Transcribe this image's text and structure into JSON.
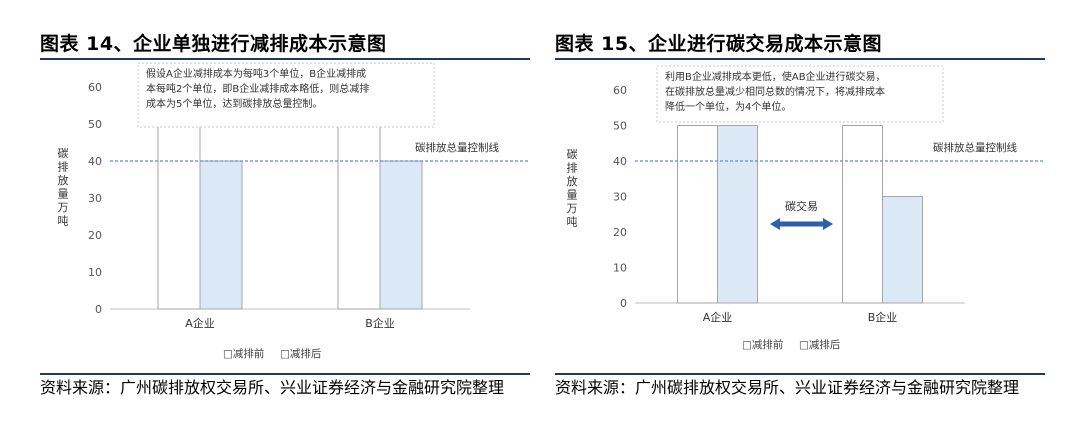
{
  "left": {
    "title": "图表 14、企业单独进行减排成本示意图",
    "source": "资料来源：广州碳排放权交易所、兴业证券经济与金融研究院整理",
    "chart_data": {
      "type": "bar",
      "categories": [
        "A企业",
        "B企业"
      ],
      "series": [
        {
          "name": "减排前",
          "values": [
            50,
            50
          ],
          "color": "#ffffff"
        },
        {
          "name": "减排后",
          "values": [
            40,
            40
          ],
          "color": "#dbe8f5"
        }
      ],
      "ylim": [
        0,
        60
      ],
      "yticks": [
        "0",
        "10",
        "20",
        "30",
        "40",
        "50",
        "60"
      ],
      "ylabel_chars": [
        "碳",
        "排",
        "放",
        "量",
        "万",
        "吨"
      ],
      "reference_line": {
        "value": 40,
        "label": "碳排放总量控制线"
      },
      "note_lines": [
        "假设A企业减排成本为每吨3个单位，B企业减排成",
        "本每吨2个单位，即B企业减排成本略低，则总减排",
        "成本为5个单位，达到碳排放总量控制。"
      ],
      "legend": [
        "□减排前",
        "□减排后"
      ],
      "legend_placement": "bottom"
    }
  },
  "right": {
    "title": "图表 15、企业进行碳交易成本示意图",
    "source": "资料来源：广州碳排放权交易所、兴业证券经济与金融研究院整理",
    "chart_data": {
      "type": "bar",
      "categories": [
        "A企业",
        "B企业"
      ],
      "series": [
        {
          "name": "减排前",
          "values": [
            50,
            50
          ],
          "color": "#ffffff"
        },
        {
          "name": "减排后",
          "values": [
            50,
            30
          ],
          "color": "#dbe8f5"
        }
      ],
      "ylim": [
        0,
        60
      ],
      "yticks": [
        "0",
        "10",
        "20",
        "30",
        "40",
        "50",
        "60"
      ],
      "ylabel_chars": [
        "碳",
        "排",
        "放",
        "量",
        "万",
        "吨"
      ],
      "reference_line": {
        "value": 40,
        "label": "碳排放总量控制线"
      },
      "annotation": {
        "label": "碳交易",
        "icon": "double-arrow-icon",
        "color": "#2e5fa8"
      },
      "note_lines": [
        "利用B企业减排成本更低，使AB企业进行碳交易，",
        "在碳排放总量减少相同总数的情况下，将减排成本",
        "降低一个单位，为4个单位。"
      ],
      "legend": [
        "□减排前",
        "□减排后"
      ],
      "legend_placement": "bottom"
    }
  }
}
